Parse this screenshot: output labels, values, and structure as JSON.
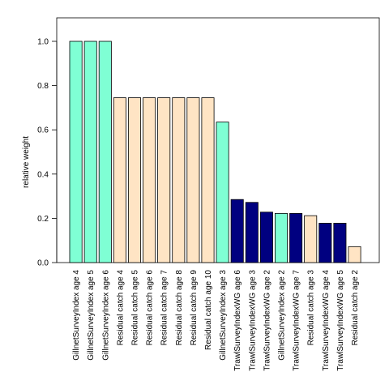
{
  "chart_data": {
    "type": "bar",
    "title": "",
    "xlabel": "",
    "ylabel": "relative weight",
    "ylim": [
      0,
      1.1
    ],
    "yticks": [
      0.0,
      0.2,
      0.4,
      0.6,
      0.8,
      1.0
    ],
    "ytick_labels": [
      "0.0",
      "0.2",
      "0.4",
      "0.6",
      "0.8",
      "1.0"
    ],
    "grid": false,
    "legend": "none",
    "colors": {
      "GillnetSurveyIndex": "#7fffd4",
      "Residual catch": "#ffe4c4",
      "TrawlSurveyIndexWG": "#000080"
    },
    "categories": [
      "GillnetSurveyIndex age 4",
      "GillnetSurveyIndex age 5",
      "GillnetSurveyIndex age 6",
      "Residual catch age 4",
      "Residual catch age 5",
      "Residual catch age 6",
      "Residual catch age 7",
      "Residual catch age 8",
      "Residual catch age 9",
      "Residual catch age 10",
      "GillnetSurveyIndex age 3",
      "TrawlSurveyIndexWG age 6",
      "TrawlSurveyIndexWG age 3",
      "TrawlSurveyIndexWG age 2",
      "GillnetSurveyIndex age 2",
      "TrawlSurveyIndexWG age 7",
      "Residual catch age 3",
      "TrawlSurveyIndexWG age 4",
      "TrawlSurveyIndexWG age 5",
      "Residual catch age 2"
    ],
    "groups": [
      "GillnetSurveyIndex",
      "GillnetSurveyIndex",
      "GillnetSurveyIndex",
      "Residual catch",
      "Residual catch",
      "Residual catch",
      "Residual catch",
      "Residual catch",
      "Residual catch",
      "Residual catch",
      "GillnetSurveyIndex",
      "TrawlSurveyIndexWG",
      "TrawlSurveyIndexWG",
      "TrawlSurveyIndexWG",
      "GillnetSurveyIndex",
      "TrawlSurveyIndexWG",
      "Residual catch",
      "TrawlSurveyIndexWG",
      "TrawlSurveyIndexWG",
      "Residual catch"
    ],
    "values": [
      1.0,
      1.0,
      1.0,
      0.745,
      0.745,
      0.745,
      0.745,
      0.745,
      0.745,
      0.745,
      0.635,
      0.285,
      0.272,
      0.228,
      0.222,
      0.222,
      0.212,
      0.178,
      0.178,
      0.072
    ]
  }
}
